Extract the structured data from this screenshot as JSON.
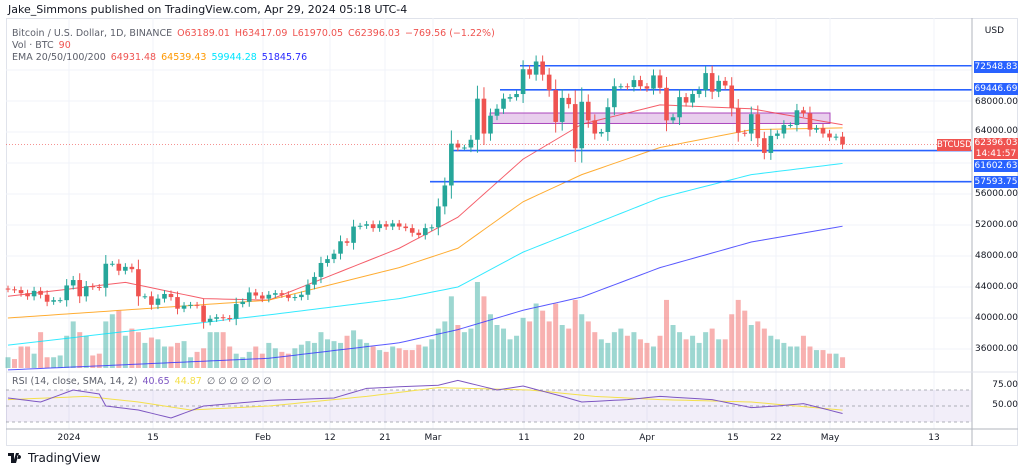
{
  "header": {
    "published": "Jake_Simmons published on TradingView.com, Apr 29, 2024 05:18 UTC-4"
  },
  "legend": {
    "symbol": "Bitcoin / U.S. Dollar, 1D, BINANCE",
    "open": "O63189.01",
    "high": "H63417.09",
    "low": "L61970.05",
    "close": "C62396.03",
    "change": "−769.56 (−1.22%)",
    "vol_label": "Vol · BTC",
    "vol_value": "90",
    "ema_label": "EMA 20/50/100/200",
    "ema20": "64931.48",
    "ema50": "64539.43",
    "ema100": "59944.28",
    "ema200": "51845.76",
    "rsi_label": "RSI (14, close, SMA, 14, 2)",
    "rsi_value": "40.65",
    "rsi_sma": "44.87",
    "rsi_na": "∅ ∅ ∅ ∅ ∅ ∅"
  },
  "price_axis": {
    "currency": "USD",
    "ticks": [
      "68000.00",
      "64000.00",
      "56000.00",
      "52000.00",
      "48000.00",
      "44000.00",
      "40000.00",
      "36000.00"
    ],
    "rsi_ticks": [
      "75.00",
      "50.00"
    ],
    "levels": [
      "72548.83",
      "69446.69",
      "61602.63",
      "57593.75"
    ],
    "symbol_tag": "BTCUSD",
    "last_price": "62396.03",
    "countdown": "14:41:57"
  },
  "time_axis": {
    "labels": [
      "2024",
      "15",
      "Feb",
      "12",
      "21",
      "Mar",
      "11",
      "20",
      "Apr",
      "15",
      "22",
      "May",
      "13"
    ]
  },
  "footer": {
    "brand": "TradingView"
  },
  "colors": {
    "up": "#26a69a",
    "down": "#ef5350",
    "ema20": "#f23645",
    "ema50": "#ff9800",
    "ema100": "#00e5ff",
    "ema200": "#3030ff",
    "levels": "#2962ff",
    "zone": "#ce93d8",
    "rsi": "#7e57c2",
    "rsi_sma": "#f4e04d"
  },
  "chart_data": {
    "type": "candlestick",
    "start_date": "2023-12-23",
    "end_date": "2024-04-29",
    "closes": [
      43700,
      43600,
      43200,
      42800,
      43500,
      43000,
      42100,
      42300,
      42300,
      44200,
      44900,
      42800,
      44100,
      44000,
      43900,
      47000,
      47000,
      46100,
      46600,
      46300,
      42800,
      42800,
      41700,
      42500,
      43100,
      42700,
      41200,
      41600,
      41700,
      41600,
      39500,
      39900,
      40100,
      40000,
      39900,
      41800,
      42100,
      43300,
      42900,
      42500,
      43000,
      43200,
      43000,
      42600,
      42700,
      43000,
      44300,
      45300,
      47100,
      47600,
      48300,
      49900,
      49700,
      51800,
      51900,
      52100,
      51600,
      52100,
      51800,
      52200,
      51800,
      51600,
      51000,
      50700,
      51600,
      51700,
      54400,
      57100,
      62500,
      62000,
      62000,
      63000,
      68300,
      63800,
      66100,
      67000,
      68300,
      68500,
      68900,
      72100,
      71400,
      73100,
      71400,
      69400,
      65300,
      68400,
      67600,
      61900,
      67900,
      65500,
      63800,
      64000,
      67200,
      69900,
      69900,
      69800,
      70700,
      69900,
      69600,
      71300,
      69700,
      65500,
      65900,
      68500,
      67800,
      68900,
      69400,
      71600,
      69200,
      70600,
      70000,
      67100,
      63900,
      63800,
      66300,
      63200,
      61300,
      63500,
      63800,
      64900,
      64900,
      66800,
      66400,
      64300,
      64500,
      63800,
      63300,
      63400,
      62396
    ],
    "volume_relative": [
      30,
      25,
      60,
      60,
      40,
      100,
      30,
      30,
      35,
      90,
      130,
      100,
      90,
      35,
      40,
      130,
      150,
      160,
      90,
      110,
      100,
      70,
      85,
      80,
      60,
      60,
      70,
      75,
      30,
      45,
      55,
      100,
      100,
      100,
      60,
      40,
      30,
      45,
      60,
      40,
      70,
      55,
      45,
      40,
      55,
      65,
      75,
      70,
      100,
      80,
      75,
      70,
      90,
      105,
      80,
      70,
      60,
      50,
      45,
      60,
      55,
      50,
      50,
      65,
      60,
      80,
      110,
      130,
      200,
      120,
      100,
      110,
      240,
      200,
      150,
      120,
      110,
      80,
      90,
      140,
      130,
      180,
      160,
      130,
      180,
      120,
      110,
      190,
      150,
      130,
      100,
      80,
      70,
      100,
      110,
      90,
      100,
      80,
      70,
      60,
      90,
      190,
      120,
      100,
      80,
      90,
      70,
      100,
      110,
      80,
      80,
      150,
      190,
      160,
      120,
      130,
      110,
      90,
      80,
      70,
      60,
      60,
      90,
      60,
      50,
      50,
      40,
      40,
      30
    ],
    "ema20": [
      [
        0,
        42800
      ],
      [
        18,
        44600
      ],
      [
        30,
        42500
      ],
      [
        40,
        42300
      ],
      [
        60,
        49000
      ],
      [
        69,
        53000
      ],
      [
        79,
        60500
      ],
      [
        88,
        65000
      ],
      [
        100,
        67500
      ],
      [
        114,
        67000
      ],
      [
        128,
        64931
      ]
    ],
    "ema50": [
      [
        0,
        40000
      ],
      [
        40,
        42300
      ],
      [
        60,
        46500
      ],
      [
        69,
        49000
      ],
      [
        79,
        55000
      ],
      [
        88,
        58500
      ],
      [
        100,
        62000
      ],
      [
        114,
        64300
      ],
      [
        128,
        64539
      ]
    ],
    "ema100": [
      [
        0,
        36500
      ],
      [
        40,
        40400
      ],
      [
        60,
        42500
      ],
      [
        69,
        44000
      ],
      [
        79,
        48500
      ],
      [
        88,
        51500
      ],
      [
        100,
        55500
      ],
      [
        114,
        58500
      ],
      [
        128,
        59944
      ]
    ],
    "ema200": [
      [
        0,
        33300
      ],
      [
        40,
        34800
      ],
      [
        60,
        36800
      ],
      [
        69,
        38500
      ],
      [
        79,
        41000
      ],
      [
        88,
        42700
      ],
      [
        100,
        46500
      ],
      [
        114,
        49800
      ],
      [
        128,
        51846
      ]
    ],
    "levels": [
      72548.83,
      69446.69,
      61602.63,
      57593.75
    ],
    "zone": [
      65100,
      66450
    ],
    "rsi": [
      [
        0,
        60
      ],
      [
        5,
        55
      ],
      [
        10,
        70
      ],
      [
        14,
        65
      ],
      [
        15,
        50
      ],
      [
        20,
        45
      ],
      [
        25,
        35
      ],
      [
        30,
        50
      ],
      [
        40,
        57
      ],
      [
        50,
        60
      ],
      [
        55,
        72
      ],
      [
        60,
        74
      ],
      [
        66,
        76
      ],
      [
        69,
        82
      ],
      [
        75,
        70
      ],
      [
        79,
        75
      ],
      [
        85,
        62
      ],
      [
        88,
        55
      ],
      [
        95,
        58
      ],
      [
        100,
        62
      ],
      [
        108,
        58
      ],
      [
        114,
        48
      ],
      [
        118,
        50
      ],
      [
        122,
        53
      ],
      [
        128,
        40.65
      ]
    ],
    "rsi_sma": [
      [
        0,
        58
      ],
      [
        12,
        62
      ],
      [
        20,
        55
      ],
      [
        28,
        45
      ],
      [
        40,
        50
      ],
      [
        55,
        62
      ],
      [
        66,
        73
      ],
      [
        80,
        70
      ],
      [
        90,
        62
      ],
      [
        100,
        58
      ],
      [
        114,
        55
      ],
      [
        128,
        44.87
      ]
    ],
    "rsi_bands": [
      70,
      30
    ],
    "grid": true
  }
}
